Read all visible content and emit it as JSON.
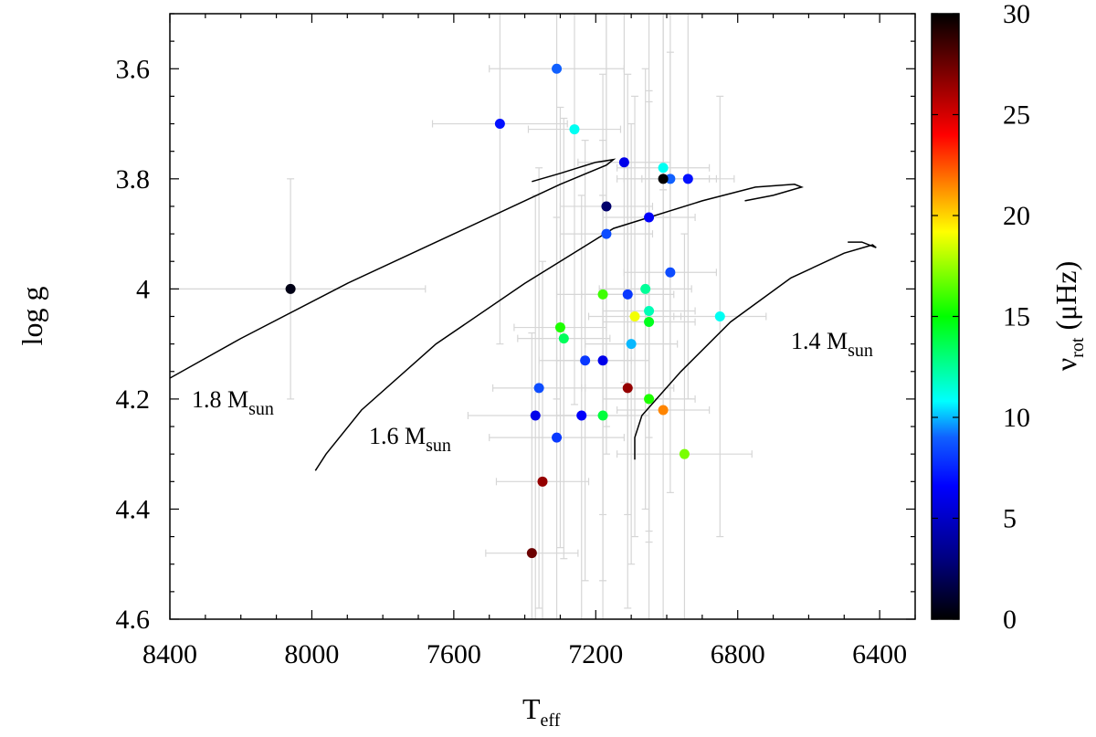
{
  "chart_data": {
    "type": "scatter",
    "xlabel": "T",
    "xlabel_sub": "eff",
    "ylabel": "log g",
    "xlim": [
      8400,
      6300
    ],
    "ylim": [
      3.5,
      4.6
    ],
    "xticks": [
      8400,
      8000,
      7600,
      7200,
      6800,
      6400
    ],
    "yticks": [
      3.6,
      3.8,
      4,
      4.2,
      4.4,
      4.6
    ],
    "colorbar": {
      "label": "ν",
      "label_sub": "rot",
      "unit": "(μHz)",
      "range": [
        0,
        30
      ],
      "ticks": [
        0,
        5,
        10,
        15,
        20,
        25,
        30
      ]
    },
    "tracks": [
      {
        "name": "1.8 M",
        "sub": "sun",
        "points": [
          [
            8450,
            4.18
          ],
          [
            8200,
            4.09
          ],
          [
            7900,
            3.99
          ],
          [
            7600,
            3.9
          ],
          [
            7300,
            3.81
          ],
          [
            7170,
            3.775
          ],
          [
            7150,
            3.765
          ],
          [
            7200,
            3.77
          ],
          [
            7300,
            3.79
          ],
          [
            7380,
            3.805
          ]
        ]
      },
      {
        "name": "1.6 M",
        "sub": "sun",
        "points": [
          [
            7990,
            4.33
          ],
          [
            7960,
            4.3
          ],
          [
            7860,
            4.22
          ],
          [
            7650,
            4.1
          ],
          [
            7400,
            3.99
          ],
          [
            7150,
            3.89
          ],
          [
            6900,
            3.84
          ],
          [
            6750,
            3.815
          ],
          [
            6640,
            3.81
          ],
          [
            6620,
            3.815
          ],
          [
            6700,
            3.83
          ],
          [
            6780,
            3.84
          ]
        ]
      },
      {
        "name": "1.4 M",
        "sub": "sun",
        "points": [
          [
            7090,
            4.31
          ],
          [
            7090,
            4.27
          ],
          [
            7070,
            4.23
          ],
          [
            6960,
            4.15
          ],
          [
            6820,
            4.06
          ],
          [
            6650,
            3.98
          ],
          [
            6500,
            3.935
          ],
          [
            6420,
            3.92
          ],
          [
            6410,
            3.925
          ],
          [
            6450,
            3.915
          ],
          [
            6490,
            3.915
          ]
        ]
      }
    ],
    "points": [
      {
        "x": 7310,
        "y": 3.6,
        "v": 9.0,
        "xerr": 190,
        "yerr": 0.6
      },
      {
        "x": 7470,
        "y": 3.7,
        "v": 7.0,
        "xerr": 190,
        "yerr": 0.4
      },
      {
        "x": 7260,
        "y": 3.71,
        "v": 11.0,
        "xerr": 130,
        "yerr": 0.5
      },
      {
        "x": 7120,
        "y": 3.77,
        "v": 6.0,
        "xerr": 130,
        "yerr": 0.4
      },
      {
        "x": 7010,
        "y": 3.78,
        "v": 11.0,
        "xerr": 130,
        "yerr": 0.4
      },
      {
        "x": 6990,
        "y": 3.8,
        "v": 9.0,
        "xerr": 130,
        "yerr": 0.4
      },
      {
        "x": 6940,
        "y": 3.8,
        "v": 7.0,
        "xerr": 130,
        "yerr": 0.4
      },
      {
        "x": 7010,
        "y": 3.8,
        "v": 30.0,
        "xerr": 130,
        "yerr": 0.4
      },
      {
        "x": 7170,
        "y": 3.85,
        "v": 2.5,
        "xerr": 130,
        "yerr": 0.4
      },
      {
        "x": 7050,
        "y": 3.87,
        "v": 6.5,
        "xerr": 130,
        "yerr": 0.4
      },
      {
        "x": 7170,
        "y": 3.9,
        "v": 8.5,
        "xerr": 130,
        "yerr": 0.4
      },
      {
        "x": 6990,
        "y": 3.97,
        "v": 8.5,
        "xerr": 130,
        "yerr": 0.4
      },
      {
        "x": 8060,
        "y": 4.0,
        "v": 0.5,
        "xerr": 380,
        "yerr": 0.2
      },
      {
        "x": 7060,
        "y": 4.0,
        "v": 12.5,
        "xerr": 130,
        "yerr": 0.4
      },
      {
        "x": 7180,
        "y": 4.01,
        "v": 16.0,
        "xerr": 130,
        "yerr": 0.4
      },
      {
        "x": 7110,
        "y": 4.01,
        "v": 8.0,
        "xerr": 130,
        "yerr": 0.4
      },
      {
        "x": 7050,
        "y": 4.04,
        "v": 12.0,
        "xerr": 130,
        "yerr": 0.4
      },
      {
        "x": 6850,
        "y": 4.05,
        "v": 11.0,
        "xerr": 130,
        "yerr": 0.4
      },
      {
        "x": 7090,
        "y": 4.05,
        "v": 19.0,
        "xerr": 130,
        "yerr": 0.4
      },
      {
        "x": 7050,
        "y": 4.06,
        "v": 14.5,
        "xerr": 130,
        "yerr": 0.4
      },
      {
        "x": 7300,
        "y": 4.07,
        "v": 15.5,
        "xerr": 130,
        "yerr": 0.4
      },
      {
        "x": 7290,
        "y": 4.09,
        "v": 13.5,
        "xerr": 130,
        "yerr": 0.4
      },
      {
        "x": 7100,
        "y": 4.1,
        "v": 10.0,
        "xerr": 130,
        "yerr": 0.4
      },
      {
        "x": 7230,
        "y": 4.13,
        "v": 8.0,
        "xerr": 130,
        "yerr": 0.4
      },
      {
        "x": 7180,
        "y": 4.13,
        "v": 6.0,
        "xerr": 130,
        "yerr": 0.4
      },
      {
        "x": 7110,
        "y": 4.18,
        "v": 26.5,
        "xerr": 130,
        "yerr": 0.4
      },
      {
        "x": 7360,
        "y": 4.18,
        "v": 8.5,
        "xerr": 130,
        "yerr": 0.4
      },
      {
        "x": 7050,
        "y": 4.2,
        "v": 15.5,
        "xerr": 130,
        "yerr": 0.4
      },
      {
        "x": 7010,
        "y": 4.22,
        "v": 21.5,
        "xerr": 130,
        "yerr": 0.4
      },
      {
        "x": 7180,
        "y": 4.23,
        "v": 14.0,
        "xerr": 130,
        "yerr": 0.4
      },
      {
        "x": 7240,
        "y": 4.23,
        "v": 6.5,
        "xerr": 130,
        "yerr": 0.4
      },
      {
        "x": 7370,
        "y": 4.23,
        "v": 6.0,
        "xerr": 190,
        "yerr": 0.4
      },
      {
        "x": 7310,
        "y": 4.27,
        "v": 8.0,
        "xerr": 190,
        "yerr": 0.4
      },
      {
        "x": 6950,
        "y": 4.3,
        "v": 17.0,
        "xerr": 190,
        "yerr": 0.4
      },
      {
        "x": 7350,
        "y": 4.35,
        "v": 26.5,
        "xerr": 130,
        "yerr": 0.4
      },
      {
        "x": 7380,
        "y": 4.48,
        "v": 27.5,
        "xerr": 130,
        "yerr": 0.4
      }
    ]
  }
}
